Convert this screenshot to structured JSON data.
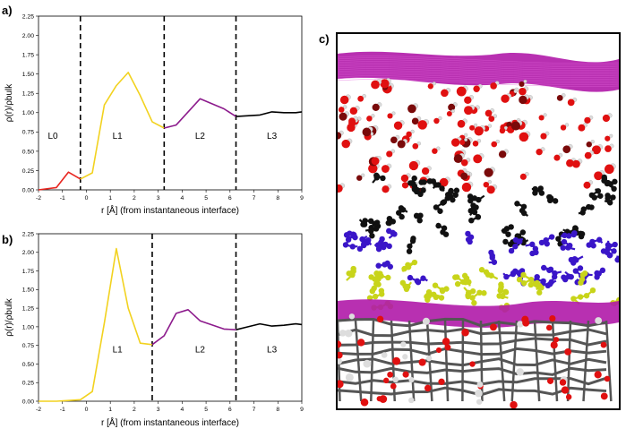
{
  "chart_data": [
    {
      "type": "line",
      "panel": "a)",
      "xlabel": "r [Å] (from instantaneous interface)",
      "ylabel": "ρ(r)/ρbulk",
      "xlim": [
        -2,
        9
      ],
      "ylim": [
        0,
        2.25
      ],
      "xticks": [
        -2,
        -1,
        0,
        1,
        2,
        3,
        4,
        5,
        6,
        7,
        8,
        9
      ],
      "yticks": [
        0.0,
        0.25,
        0.5,
        0.75,
        1.0,
        1.25,
        1.5,
        1.75,
        2.0,
        2.25
      ],
      "ytick_labels": [
        "0.00",
        "0.25",
        "0.50",
        "0.75",
        "1.00",
        "1.25",
        "1.50",
        "1.75",
        "2.00",
        "2.25"
      ],
      "boundaries": [
        -0.25,
        3.25,
        6.25
      ],
      "region_labels": [
        {
          "text": "L0",
          "x": -1.4,
          "y": 0.7
        },
        {
          "text": "L1",
          "x": 1.3,
          "y": 0.7
        },
        {
          "text": "L2",
          "x": 4.75,
          "y": 0.7
        },
        {
          "text": "L3",
          "x": 7.75,
          "y": 0.7
        }
      ],
      "series": [
        {
          "color": "#e8251f",
          "x": [
            -2,
            -1.25,
            -0.75,
            -0.25
          ],
          "y": [
            0.0,
            0.03,
            0.23,
            0.14
          ]
        },
        {
          "color": "#f2d21f",
          "x": [
            -0.25,
            0.25,
            0.75,
            1.25,
            1.75,
            2.25,
            2.75,
            3.25
          ],
          "y": [
            0.14,
            0.22,
            1.1,
            1.35,
            1.52,
            1.22,
            0.88,
            0.8
          ]
        },
        {
          "color": "#8c1a8c",
          "x": [
            3.25,
            3.75,
            4.75,
            5.75,
            6.25
          ],
          "y": [
            0.8,
            0.84,
            1.18,
            1.05,
            0.95
          ]
        },
        {
          "color": "#000000",
          "x": [
            6.25,
            7.25,
            7.75,
            8.25,
            8.75,
            9
          ],
          "y": [
            0.95,
            0.97,
            1.01,
            1.0,
            1.0,
            1.01
          ]
        }
      ]
    },
    {
      "type": "line",
      "panel": "b)",
      "xlabel": "r [Å] (from instantaneous interface)",
      "ylabel": "ρ(r)/ρbulk",
      "xlim": [
        -2,
        9
      ],
      "ylim": [
        0,
        2.25
      ],
      "xticks": [
        -2,
        -1,
        0,
        1,
        2,
        3,
        4,
        5,
        6,
        7,
        8,
        9
      ],
      "yticks": [
        0.0,
        0.25,
        0.5,
        0.75,
        1.0,
        1.25,
        1.5,
        1.75,
        2.0,
        2.25
      ],
      "ytick_labels": [
        "0.00",
        "0.25",
        "0.50",
        "0.75",
        "1.00",
        "1.25",
        "1.50",
        "1.75",
        "2.00",
        "2.25"
      ],
      "boundaries": [
        2.75,
        6.25
      ],
      "region_labels": [
        {
          "text": "L1",
          "x": 1.3,
          "y": 0.7
        },
        {
          "text": "L2",
          "x": 4.75,
          "y": 0.7
        },
        {
          "text": "L3",
          "x": 7.75,
          "y": 0.7
        }
      ],
      "series": [
        {
          "color": "#f2d21f",
          "x": [
            -2,
            -1.25,
            -0.75,
            -0.25,
            0.25,
            0.75,
            1.25,
            1.75,
            2.25,
            2.75
          ],
          "y": [
            0.0,
            0.0,
            0.01,
            0.02,
            0.13,
            1.05,
            2.05,
            1.25,
            0.78,
            0.76
          ]
        },
        {
          "color": "#8c1a8c",
          "x": [
            2.75,
            3.25,
            3.75,
            4.25,
            4.75,
            5.75,
            6.25
          ],
          "y": [
            0.76,
            0.88,
            1.18,
            1.23,
            1.08,
            0.97,
            0.96
          ]
        },
        {
          "color": "#000000",
          "x": [
            6.25,
            6.75,
            7.25,
            7.75,
            8.25,
            8.75,
            9
          ],
          "y": [
            0.96,
            1.0,
            1.04,
            1.01,
            1.02,
            1.04,
            1.03
          ]
        }
      ]
    }
  ],
  "panel_c": {
    "tag": "c)"
  }
}
